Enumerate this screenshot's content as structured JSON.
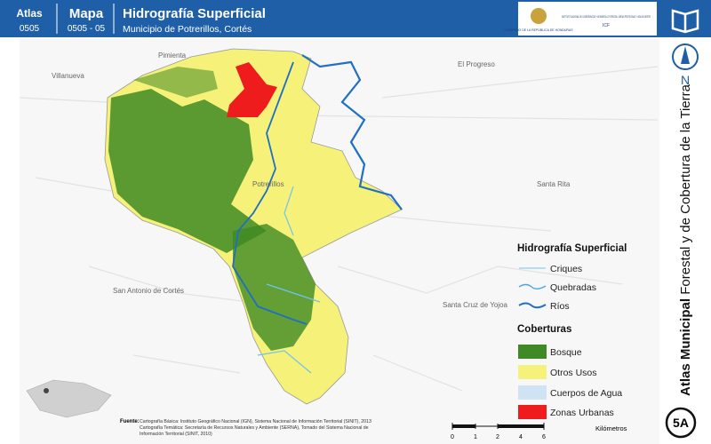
{
  "header": {
    "atlas_label": "Atlas",
    "atlas_code": "0505",
    "map_label": "Mapa",
    "map_code": "0505 - 05",
    "title": "Hidrografía Superficial",
    "subtitle": "Municipio de Potrerillos, Cortés",
    "logo_left": "GOBIERNO DE LA REPÚBLICA DE HONDURAS",
    "logo_right": "INSTITUTO NACIONAL DE CONSERVACIÓN Y DESARROLLO FORESTAL, ÁREAS PROTEGIDAS Y VIDA SILVESTRE",
    "logo_right_code": "ICF"
  },
  "places": [
    "Villanueva",
    "Pimienta",
    "El Progreso",
    "Potrerillos",
    "Santa Rita",
    "San Antonio de Cortés",
    "Santa Cruz de Yojoa"
  ],
  "legend": {
    "hydro_title": "Hidrografía Superficial",
    "hydro_items": [
      "Criques",
      "Quebradas",
      "Ríos"
    ],
    "cover_title": "Coberturas",
    "cover_items": [
      "Bosque",
      "Otros Usos",
      "Cuerpos de Agua",
      "Zonas Urbanas"
    ]
  },
  "scale": {
    "ticks": [
      0,
      1,
      2,
      4,
      6
    ],
    "unit": "Kilómetros"
  },
  "sidebar": {
    "north": "N",
    "title_bold": "Atlas Municipal",
    "title_rest": "Forestal y de Cobertura de la Tierra",
    "badge": "5A"
  },
  "footer": {
    "label": "Fuente:",
    "lines": [
      "Cartografía Básica: Instituto Geográfico Nacional (IGN), Sistema Nacional de Información Territorial (SINIT), 2013",
      "Cartografía Temática: Secretaría de Recursos Naturales y Ambiente (SERNA), Tomado del Sistema Nacional de",
      "Información Territorial (SINIT, 2010)"
    ]
  }
}
